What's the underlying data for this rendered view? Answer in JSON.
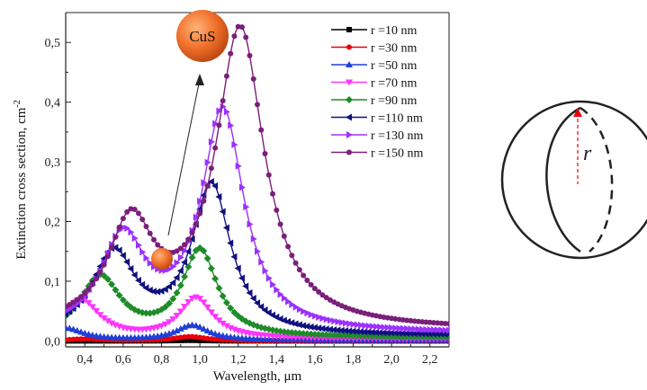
{
  "chart_data": {
    "type": "line",
    "xlabel": "Wavelength, μm",
    "ylabel": "Extinction cross section, cm",
    "ylabel_superscript": "-2",
    "xlim": [
      0.3,
      2.3
    ],
    "ylim": [
      -0.01,
      0.55
    ],
    "xticks": [
      "0,4",
      "0,6",
      "0,8",
      "1,0",
      "1,2",
      "1,4",
      "1,6",
      "1,8",
      "2,0",
      "2,2"
    ],
    "xtick_values": [
      0.4,
      0.6,
      0.8,
      1.0,
      1.2,
      1.4,
      1.6,
      1.8,
      2.0,
      2.2
    ],
    "yticks": [
      "0,0",
      "0,1",
      "0,2",
      "0,3",
      "0,4",
      "0,5"
    ],
    "ytick_values": [
      0.0,
      0.1,
      0.2,
      0.3,
      0.4,
      0.5
    ],
    "legend_position": "top-right",
    "grid": false,
    "series": [
      {
        "name": "r =10 nm",
        "color": "#000000",
        "marker": "square",
        "peak1": {
          "x": 0.62,
          "y": 0.0
        },
        "peak2": {
          "x": 0.95,
          "y": 0.001
        },
        "tail": 0.0
      },
      {
        "name": "r =30 nm",
        "color": "#e8000b",
        "marker": "circle",
        "peak1": {
          "x": 0.4,
          "y": 0.003
        },
        "peak2": {
          "x": 0.95,
          "y": 0.007
        },
        "tail": 0.0
      },
      {
        "name": "r =50 nm",
        "color": "#1f3fd6",
        "marker": "triangle",
        "peak1": {
          "x": 0.3,
          "y": 0.02
        },
        "peak2": {
          "x": 0.96,
          "y": 0.025
        },
        "tail": 0.001
      },
      {
        "name": "r =70 nm",
        "color": "#ff33ff",
        "marker": "tri-down",
        "peak1": {
          "x": 0.38,
          "y": 0.065
        },
        "peak2": {
          "x": 0.98,
          "y": 0.068
        },
        "tail": 0.003
      },
      {
        "name": "r =90 nm",
        "color": "#1e8c28",
        "marker": "diamond",
        "peak1": {
          "x": 0.48,
          "y": 0.1
        },
        "peak2": {
          "x": 1.0,
          "y": 0.145
        },
        "tail": 0.005
      },
      {
        "name": "r =110 nm",
        "color": "#101080",
        "marker": "tri-left",
        "peak1": {
          "x": 0.55,
          "y": 0.135
        },
        "peak2": {
          "x": 1.06,
          "y": 0.25
        },
        "tail": 0.008
      },
      {
        "name": "r =130 nm",
        "color": "#9b30ff",
        "marker": "tri-right",
        "peak1": {
          "x": 0.6,
          "y": 0.155
        },
        "peak2": {
          "x": 1.12,
          "y": 0.37
        },
        "tail": 0.012
      },
      {
        "name": "r =150 nm",
        "color": "#7a1f7a",
        "marker": "circle",
        "peak1": {
          "x": 0.64,
          "y": 0.17
        },
        "peak2": {
          "x": 1.21,
          "y": 0.5
        },
        "tail": 0.018
      }
    ],
    "annotation": {
      "text": "CuS"
    }
  },
  "sphere_diagram": {
    "label": "r"
  }
}
